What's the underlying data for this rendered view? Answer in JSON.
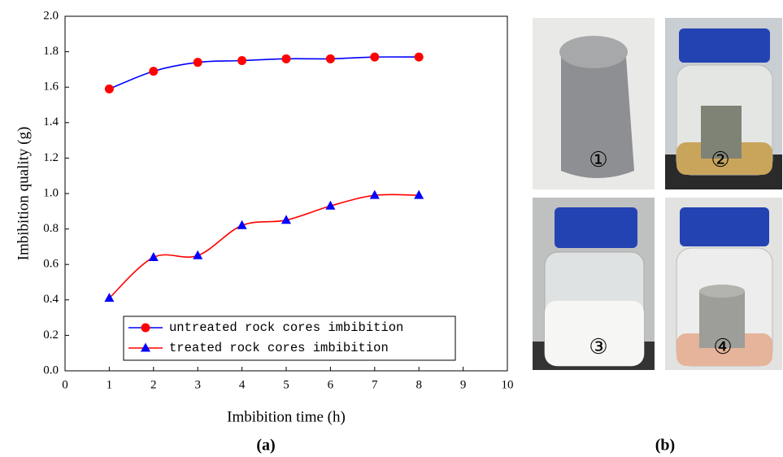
{
  "chart_data": {
    "type": "line",
    "x_label": "Imbibition time (h)",
    "y_label": "Imbibition quality (g)",
    "caption": "(a)",
    "x": [
      1,
      2,
      3,
      4,
      5,
      6,
      7,
      8
    ],
    "series": [
      {
        "name": "untreated rock cores imbibition",
        "color": "#0000ff",
        "marker_color": "#ff0000",
        "marker": "circle",
        "values": [
          1.59,
          1.69,
          1.74,
          1.75,
          1.76,
          1.76,
          1.77,
          1.77
        ]
      },
      {
        "name": "treated rock cores imbibition",
        "color": "#ff0000",
        "marker_color": "#0000ff",
        "marker": "triangle",
        "values": [
          0.41,
          0.64,
          0.65,
          0.82,
          0.85,
          0.93,
          0.99,
          0.99
        ]
      }
    ],
    "xlim": [
      0,
      10
    ],
    "xticks": [
      0,
      1,
      2,
      3,
      4,
      5,
      6,
      7,
      8,
      9,
      10
    ],
    "ylim": [
      0,
      2
    ],
    "yticks": [
      {
        "value": 0,
        "label": "0.0"
      },
      {
        "value": 0.2,
        "label": "0.2"
      },
      {
        "value": 0.4,
        "label": "0.4"
      },
      {
        "value": 0.6,
        "label": "0.6"
      },
      {
        "value": 0.8,
        "label": "0.8"
      },
      {
        "value": 1,
        "label": "1.0"
      },
      {
        "value": 1.2,
        "label": "1.2"
      },
      {
        "value": 1.4,
        "label": "1.4"
      },
      {
        "value": 1.6,
        "label": "1.6"
      },
      {
        "value": 1.8,
        "label": "1.8"
      },
      {
        "value": 2,
        "label": "2.0"
      }
    ]
  },
  "panel_b": {
    "caption": "(b)",
    "photo_labels": [
      "①",
      "②",
      "③",
      "④"
    ]
  }
}
